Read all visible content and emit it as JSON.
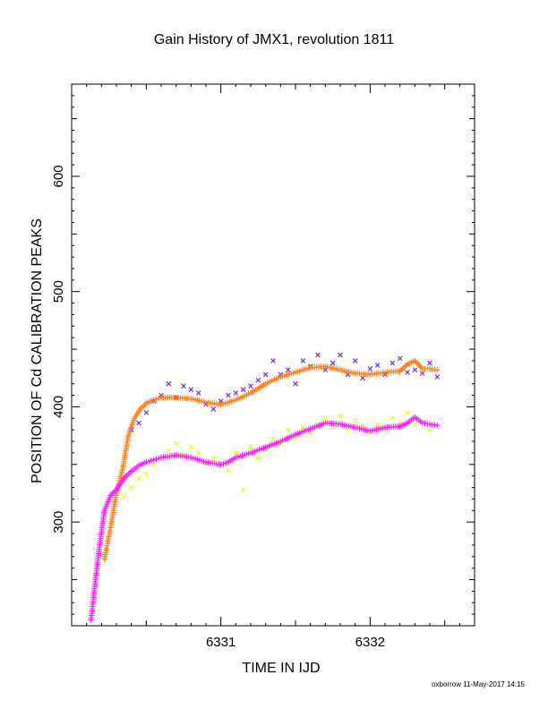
{
  "chart_data": {
    "type": "scatter",
    "title": "Gain History of JMX1, revolution 1811",
    "xlabel": "TIME IN IJD",
    "ylabel": "POSITION OF Cd CALIBRATION PEAKS",
    "xlim": [
      6330.0,
      6332.7
    ],
    "ylim": [
      210,
      680
    ],
    "x_ticks": [
      6331,
      6332
    ],
    "y_ticks": [
      300,
      400,
      500,
      600
    ],
    "grid": false,
    "series": [
      {
        "color": "#7b2bd6",
        "marker": "x",
        "kind": "scatter",
        "points": [
          [
            6330.4,
            380
          ],
          [
            6330.45,
            386
          ],
          [
            6330.5,
            395
          ],
          [
            6330.55,
            405
          ],
          [
            6330.6,
            410
          ],
          [
            6330.65,
            420
          ],
          [
            6330.7,
            408
          ],
          [
            6330.75,
            418
          ],
          [
            6330.8,
            415
          ],
          [
            6330.85,
            412
          ],
          [
            6330.9,
            402
          ],
          [
            6330.95,
            398
          ],
          [
            6331.0,
            405
          ],
          [
            6331.05,
            410
          ],
          [
            6331.1,
            412
          ],
          [
            6331.15,
            415
          ],
          [
            6331.2,
            418
          ],
          [
            6331.25,
            423
          ],
          [
            6331.3,
            428
          ],
          [
            6331.35,
            440
          ],
          [
            6331.4,
            428
          ],
          [
            6331.45,
            432
          ],
          [
            6331.5,
            420
          ],
          [
            6331.55,
            440
          ],
          [
            6331.6,
            435
          ],
          [
            6331.65,
            445
          ],
          [
            6331.7,
            432
          ],
          [
            6331.75,
            438
          ],
          [
            6331.8,
            445
          ],
          [
            6331.85,
            428
          ],
          [
            6331.9,
            440
          ],
          [
            6331.95,
            425
          ],
          [
            6332.0,
            433
          ],
          [
            6332.05,
            436
          ],
          [
            6332.1,
            428
          ],
          [
            6332.15,
            438
          ],
          [
            6332.2,
            442
          ],
          [
            6332.25,
            430
          ],
          [
            6332.3,
            432
          ],
          [
            6332.35,
            429
          ],
          [
            6332.4,
            438
          ],
          [
            6332.45,
            426
          ]
        ]
      },
      {
        "color": "#ff7f1e",
        "marker": "+",
        "kind": "line",
        "points": [
          [
            6330.22,
            268
          ],
          [
            6330.26,
            295
          ],
          [
            6330.3,
            325
          ],
          [
            6330.34,
            345
          ],
          [
            6330.38,
            375
          ],
          [
            6330.42,
            390
          ],
          [
            6330.46,
            398
          ],
          [
            6330.5,
            403
          ],
          [
            6330.55,
            406
          ],
          [
            6330.6,
            408
          ],
          [
            6330.7,
            408
          ],
          [
            6330.8,
            407
          ],
          [
            6330.9,
            404
          ],
          [
            6331.0,
            402
          ],
          [
            6331.1,
            406
          ],
          [
            6331.2,
            412
          ],
          [
            6331.3,
            420
          ],
          [
            6331.4,
            426
          ],
          [
            6331.5,
            430
          ],
          [
            6331.6,
            434
          ],
          [
            6331.7,
            435
          ],
          [
            6331.8,
            432
          ],
          [
            6331.9,
            429
          ],
          [
            6332.0,
            428
          ],
          [
            6332.1,
            430
          ],
          [
            6332.2,
            431
          ],
          [
            6332.25,
            437
          ],
          [
            6332.3,
            440
          ],
          [
            6332.35,
            433
          ],
          [
            6332.4,
            433
          ],
          [
            6332.45,
            432
          ]
        ]
      },
      {
        "color": "#f5f51e",
        "marker": "x",
        "kind": "scatter",
        "points": [
          [
            6330.35,
            322
          ],
          [
            6330.4,
            330
          ],
          [
            6330.45,
            338
          ],
          [
            6330.5,
            342
          ],
          [
            6330.55,
            350
          ],
          [
            6330.6,
            355
          ],
          [
            6330.65,
            362
          ],
          [
            6330.7,
            368
          ],
          [
            6330.75,
            358
          ],
          [
            6330.8,
            365
          ],
          [
            6330.85,
            360
          ],
          [
            6330.9,
            350
          ],
          [
            6330.95,
            355
          ],
          [
            6331.0,
            350
          ],
          [
            6331.05,
            345
          ],
          [
            6331.1,
            360
          ],
          [
            6331.15,
            328
          ],
          [
            6331.2,
            365
          ],
          [
            6331.25,
            355
          ],
          [
            6331.3,
            362
          ],
          [
            6331.35,
            372
          ],
          [
            6331.4,
            368
          ],
          [
            6331.45,
            380
          ],
          [
            6331.5,
            372
          ],
          [
            6331.55,
            382
          ],
          [
            6331.6,
            378
          ],
          [
            6331.65,
            384
          ],
          [
            6331.7,
            390
          ],
          [
            6331.75,
            383
          ],
          [
            6331.8,
            392
          ],
          [
            6331.85,
            380
          ],
          [
            6331.9,
            388
          ],
          [
            6331.95,
            383
          ],
          [
            6332.0,
            378
          ],
          [
            6332.05,
            384
          ],
          [
            6332.1,
            380
          ],
          [
            6332.15,
            390
          ],
          [
            6332.2,
            386
          ],
          [
            6332.25,
            395
          ],
          [
            6332.3,
            385
          ],
          [
            6332.35,
            387
          ],
          [
            6332.4,
            380
          ]
        ]
      },
      {
        "color": "#ff1eff",
        "marker": "+",
        "kind": "line",
        "points": [
          [
            6330.13,
            215
          ],
          [
            6330.16,
            250
          ],
          [
            6330.19,
            282
          ],
          [
            6330.22,
            310
          ],
          [
            6330.26,
            323
          ],
          [
            6330.3,
            328
          ],
          [
            6330.35,
            338
          ],
          [
            6330.4,
            344
          ],
          [
            6330.45,
            349
          ],
          [
            6330.5,
            352
          ],
          [
            6330.55,
            354
          ],
          [
            6330.6,
            356
          ],
          [
            6330.7,
            358
          ],
          [
            6330.8,
            356
          ],
          [
            6330.9,
            352
          ],
          [
            6331.0,
            350
          ],
          [
            6331.05,
            352
          ],
          [
            6331.1,
            356
          ],
          [
            6331.2,
            360
          ],
          [
            6331.3,
            365
          ],
          [
            6331.4,
            370
          ],
          [
            6331.5,
            376
          ],
          [
            6331.6,
            381
          ],
          [
            6331.7,
            386
          ],
          [
            6331.8,
            385
          ],
          [
            6331.9,
            382
          ],
          [
            6332.0,
            379
          ],
          [
            6332.1,
            382
          ],
          [
            6332.2,
            383
          ],
          [
            6332.25,
            386
          ],
          [
            6332.3,
            391
          ],
          [
            6332.35,
            386
          ],
          [
            6332.4,
            385
          ],
          [
            6332.45,
            384
          ]
        ]
      }
    ]
  },
  "footer": "oxborrow 11-May-2017 14:15"
}
